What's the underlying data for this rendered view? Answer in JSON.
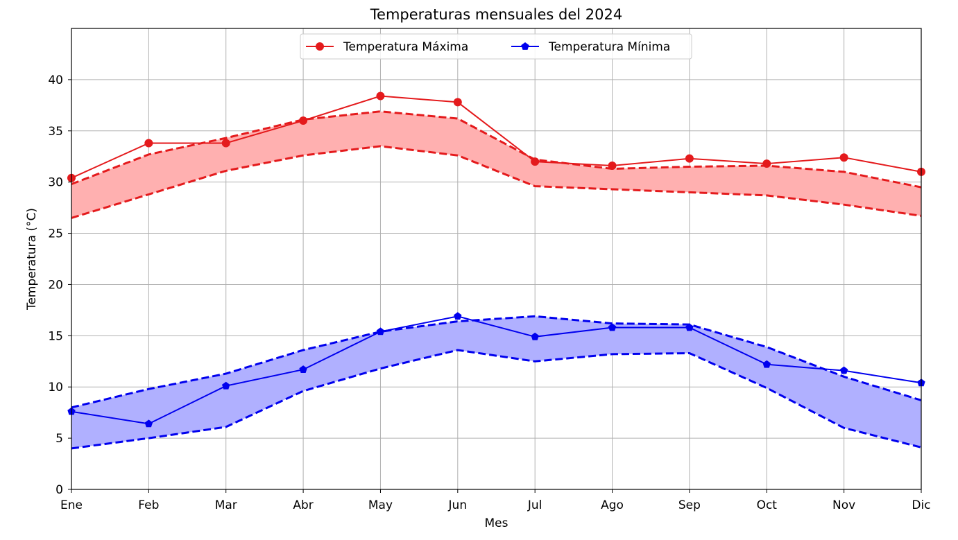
{
  "chart_data": {
    "type": "line",
    "title": "Temperaturas mensuales del 2024",
    "xlabel": "Mes",
    "ylabel": "Temperatura (°C)",
    "categories": [
      "Ene",
      "Feb",
      "Mar",
      "Abr",
      "May",
      "Jun",
      "Jul",
      "Ago",
      "Sep",
      "Oct",
      "Nov",
      "Dic"
    ],
    "ylim": [
      0,
      45
    ],
    "yticks": [
      0,
      5,
      10,
      15,
      20,
      25,
      30,
      35,
      40
    ],
    "grid": true,
    "legend_position": "top-center",
    "series": [
      {
        "name": "Temperatura Máxima",
        "color": "#e41a1c",
        "fill_color": "#ffb0b0",
        "marker": "circle",
        "values": [
          30.4,
          33.8,
          33.8,
          36.0,
          38.4,
          37.8,
          32.0,
          31.6,
          32.3,
          31.8,
          32.4,
          31.0
        ],
        "band_upper": [
          29.8,
          32.7,
          34.3,
          36.1,
          36.9,
          36.2,
          32.2,
          31.3,
          31.5,
          31.6,
          31.0,
          29.5
        ],
        "band_lower": [
          26.5,
          28.8,
          31.1,
          32.6,
          33.5,
          32.6,
          29.6,
          29.3,
          29.0,
          28.7,
          27.8,
          26.7
        ]
      },
      {
        "name": "Temperatura Mínima",
        "color": "#0000ee",
        "fill_color": "#b0b0ff",
        "marker": "pentagon",
        "values": [
          7.6,
          6.4,
          10.1,
          11.7,
          15.4,
          16.9,
          14.9,
          15.8,
          15.8,
          12.2,
          11.6,
          10.4
        ],
        "band_upper": [
          8.0,
          9.8,
          11.3,
          13.6,
          15.4,
          16.4,
          16.9,
          16.2,
          16.1,
          13.9,
          11.0,
          8.7
        ],
        "band_lower": [
          4.0,
          5.0,
          6.1,
          9.6,
          11.8,
          13.6,
          12.5,
          13.2,
          13.3,
          9.9,
          6.0,
          4.1
        ]
      }
    ]
  }
}
